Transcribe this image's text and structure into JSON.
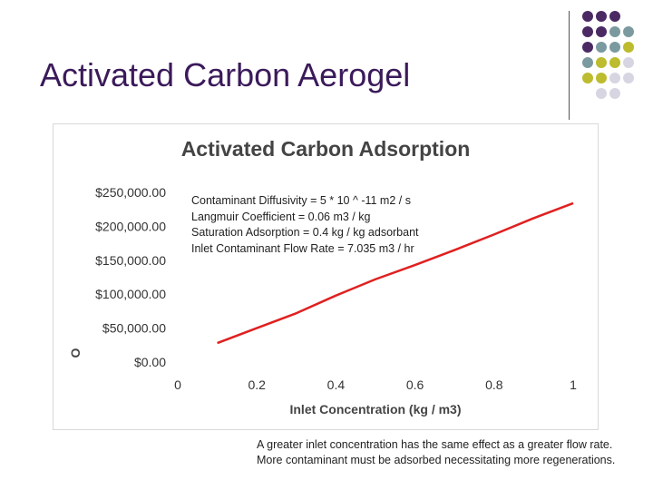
{
  "slide": {
    "title": "Activated Carbon Aerogel",
    "caption": "A greater inlet concentration has the same effect as a greater flow rate.  More contaminant must be adsorbed necessitating more regenerations."
  },
  "decoration": {
    "dot_colors": {
      "purple": "#4b2a64",
      "teal": "#7b9aa0",
      "olive": "#bcbc2e",
      "lavender": "#d7d5e2"
    },
    "dot_rows": [
      [
        "purple",
        "purple",
        "purple",
        null
      ],
      [
        "purple",
        "purple",
        "teal",
        "teal"
      ],
      [
        "purple",
        "teal",
        "teal",
        "olive"
      ],
      [
        "teal",
        "olive",
        "olive",
        "lavender"
      ],
      [
        "olive",
        "olive",
        "lavender",
        "lavender"
      ],
      [
        null,
        "lavender",
        "lavender",
        null
      ]
    ]
  },
  "chart": {
    "parameters": [
      "Contaminant Diffusivity = 5 * 10 ^ -11 m2 / s",
      "Langmuir Coefficient = 0.06 m3 / kg",
      "Saturation Adsorption = 0.4 kg / kg adsorbant",
      "Inlet Contaminant Flow Rate = 7.035 m3 / hr"
    ]
  },
  "chart_data": {
    "type": "line",
    "title": "Activated Carbon Adsorption",
    "xlabel": "Inlet Concentration (kg / m3)",
    "ylabel": "O",
    "xlim": [
      0,
      1
    ],
    "ylim": [
      0,
      250000
    ],
    "x_ticks": [
      "0",
      "0.2",
      "0.4",
      "0.6",
      "0.8",
      "1"
    ],
    "y_ticks": [
      "$0.00",
      "$50,000.00",
      "$100,000.00",
      "$150,000.00",
      "$200,000.00",
      "$250,000.00"
    ],
    "grid": false,
    "series": [
      {
        "color": "#e02020",
        "x": [
          0.1,
          0.2,
          0.3,
          0.4,
          0.5,
          0.6,
          0.7,
          0.8,
          0.9,
          1.0
        ],
        "y": [
          28000,
          50000,
          72000,
          98000,
          122000,
          143000,
          165000,
          188000,
          212000,
          234000
        ]
      }
    ]
  }
}
